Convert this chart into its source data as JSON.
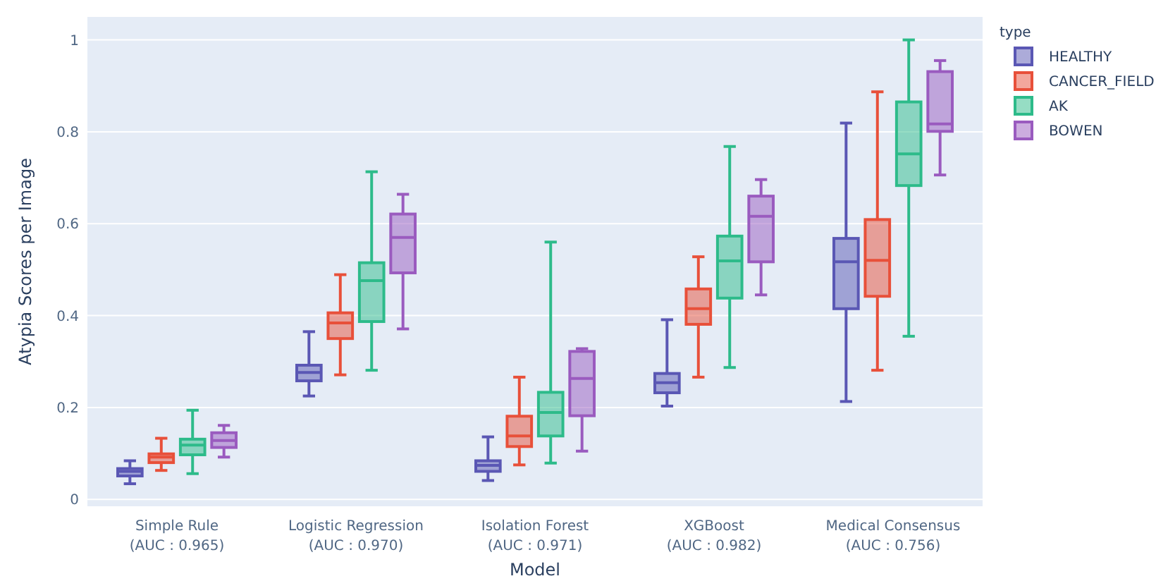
{
  "chart_data": {
    "type": "box",
    "xlabel": "Model",
    "ylabel": "Atypia Scores per Image",
    "legend_title": "type",
    "legend": "right",
    "grid": "y",
    "categories": [
      "Simple Rule\n(AUC : 0.965)",
      "Logistic Regression\n(AUC : 0.970)",
      "Isolation Forest\n(AUC : 0.971)",
      "XGBoost\n(AUC : 0.982)",
      "Medical Consensus\n(AUC : 0.756)"
    ],
    "ylim": [
      -0.015,
      1.05
    ],
    "yticks": [
      0,
      0.2,
      0.4,
      0.6,
      0.8,
      1
    ],
    "series": [
      {
        "name": "HEALTHY",
        "color": "#5a57b4",
        "boxes": [
          {
            "low": 0.034,
            "q1": 0.051,
            "median": 0.061,
            "q3": 0.067,
            "high": 0.084
          },
          {
            "low": 0.225,
            "q1": 0.258,
            "median": 0.276,
            "q3": 0.292,
            "high": 0.365
          },
          {
            "low": 0.041,
            "q1": 0.061,
            "median": 0.074,
            "q3": 0.084,
            "high": 0.136
          },
          {
            "low": 0.203,
            "q1": 0.232,
            "median": 0.254,
            "q3": 0.274,
            "high": 0.391
          },
          {
            "low": 0.213,
            "q1": 0.415,
            "median": 0.517,
            "q3": 0.568,
            "high": 0.819
          }
        ]
      },
      {
        "name": "CANCER_FIELD",
        "color": "#e8503a",
        "boxes": [
          {
            "low": 0.063,
            "q1": 0.08,
            "median": 0.092,
            "q3": 0.099,
            "high": 0.133
          },
          {
            "low": 0.271,
            "q1": 0.35,
            "median": 0.384,
            "q3": 0.406,
            "high": 0.489
          },
          {
            "low": 0.075,
            "q1": 0.115,
            "median": 0.138,
            "q3": 0.181,
            "high": 0.266
          },
          {
            "low": 0.266,
            "q1": 0.381,
            "median": 0.415,
            "q3": 0.458,
            "high": 0.528
          },
          {
            "low": 0.281,
            "q1": 0.442,
            "median": 0.52,
            "q3": 0.609,
            "high": 0.887
          }
        ]
      },
      {
        "name": "AK",
        "color": "#2dbb8a",
        "boxes": [
          {
            "low": 0.056,
            "q1": 0.097,
            "median": 0.118,
            "q3": 0.131,
            "high": 0.194
          },
          {
            "low": 0.281,
            "q1": 0.387,
            "median": 0.476,
            "q3": 0.515,
            "high": 0.713
          },
          {
            "low": 0.079,
            "q1": 0.138,
            "median": 0.189,
            "q3": 0.233,
            "high": 0.56
          },
          {
            "low": 0.287,
            "q1": 0.438,
            "median": 0.519,
            "q3": 0.573,
            "high": 0.768
          },
          {
            "low": 0.355,
            "q1": 0.683,
            "median": 0.752,
            "q3": 0.865,
            "high": 1.0
          }
        ]
      },
      {
        "name": "BOWEN",
        "color": "#9a5bbf",
        "boxes": [
          {
            "low": 0.092,
            "q1": 0.113,
            "median": 0.128,
            "q3": 0.145,
            "high": 0.161
          },
          {
            "low": 0.371,
            "q1": 0.493,
            "median": 0.57,
            "q3": 0.621,
            "high": 0.664
          },
          {
            "low": 0.105,
            "q1": 0.182,
            "median": 0.263,
            "q3": 0.322,
            "high": 0.328
          },
          {
            "low": 0.445,
            "q1": 0.517,
            "median": 0.616,
            "q3": 0.66,
            "high": 0.696
          },
          {
            "low": 0.706,
            "q1": 0.801,
            "median": 0.817,
            "q3": 0.931,
            "high": 0.955
          }
        ]
      }
    ]
  }
}
